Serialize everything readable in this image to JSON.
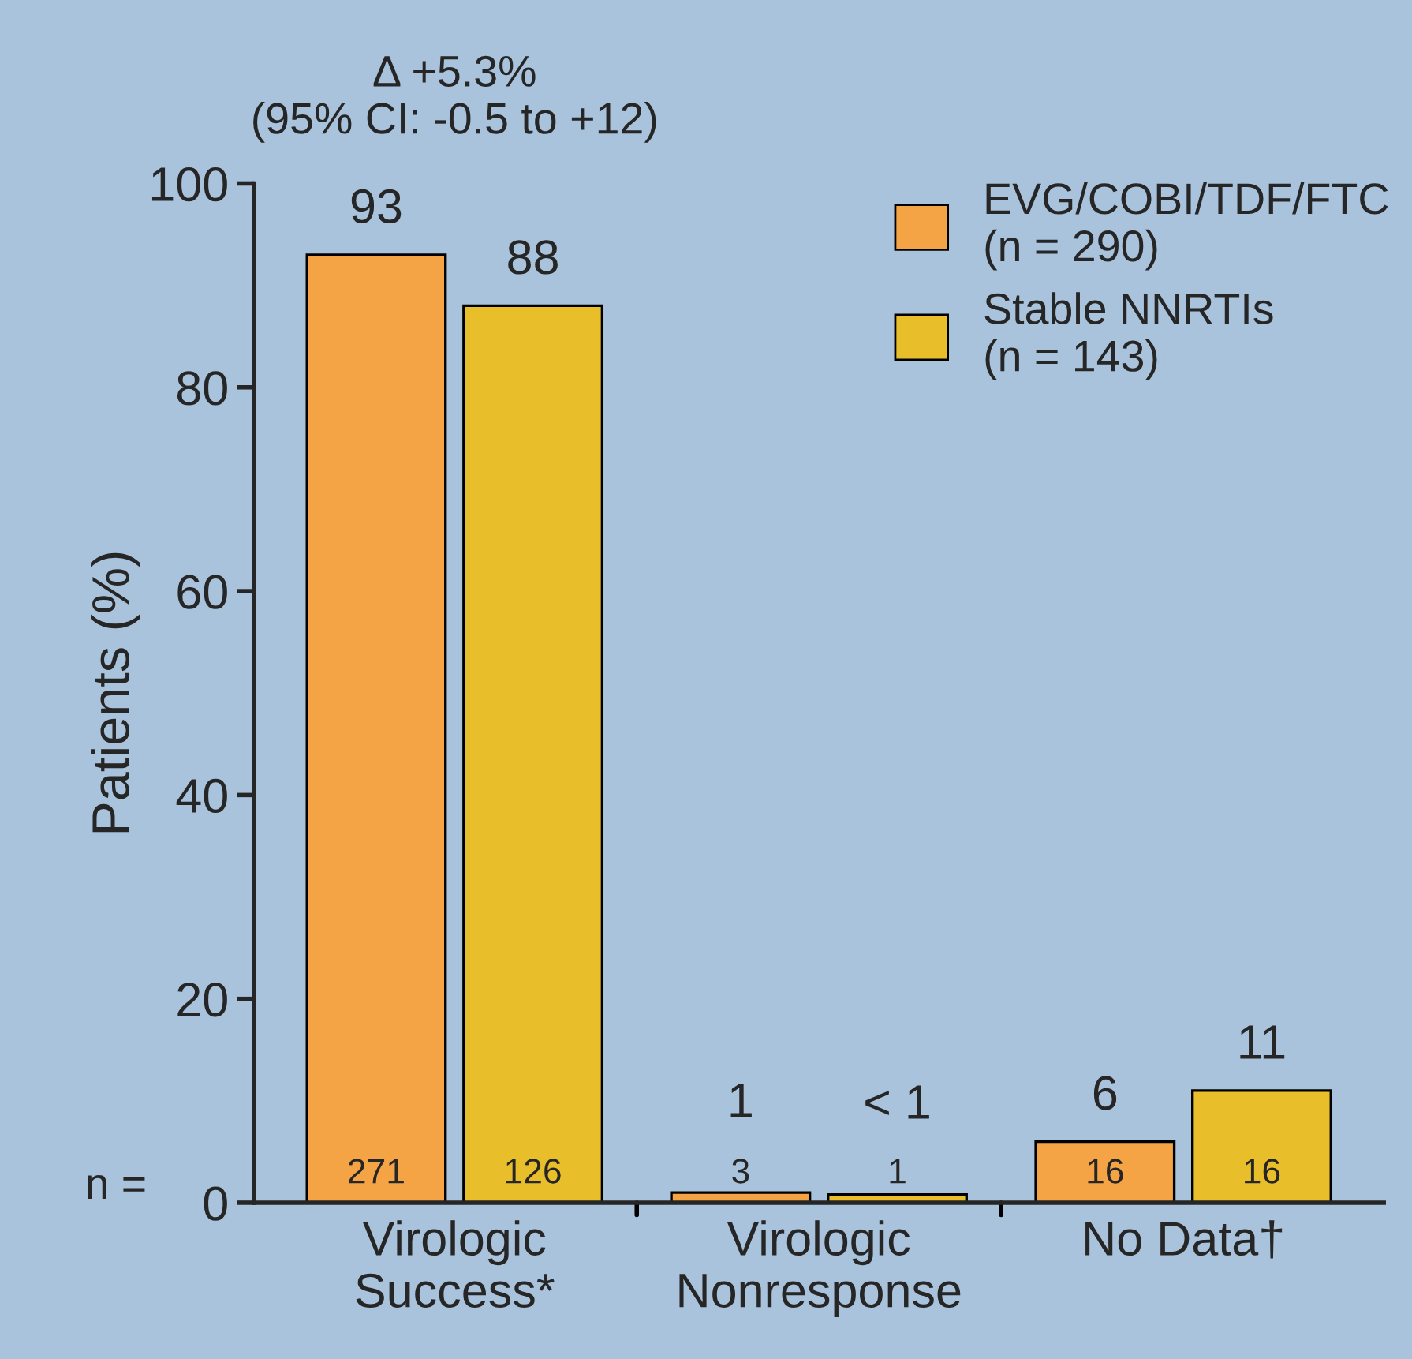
{
  "chart_data": {
    "type": "bar",
    "ylabel": "Patients (%)",
    "categories": [
      "Virologic\nSuccess*",
      "Virologic\nNonresponse",
      "No Data†"
    ],
    "series": [
      {
        "name": "EVG/COBI/TDF/FTC\n(n = 290)",
        "color": "#f4a445",
        "values": [
          93,
          1,
          6
        ],
        "value_labels": [
          "93",
          "1",
          "6"
        ]
      },
      {
        "name": "Stable NNRTIs\n(n = 143)",
        "color": "#e8bf2a",
        "values": [
          88,
          0.8,
          11
        ],
        "value_labels": [
          "88",
          "< 1",
          "11"
        ]
      }
    ],
    "ylim": [
      0,
      100
    ],
    "yticks": [
      0,
      20,
      40,
      60,
      80,
      100
    ],
    "grid": false,
    "legend": "top right",
    "annotations": [
      "Δ +5.3%\n(95% CI: -0.5 to +12)",
      "n =",
      "271",
      "126",
      "3",
      "1",
      "16",
      "16"
    ]
  }
}
